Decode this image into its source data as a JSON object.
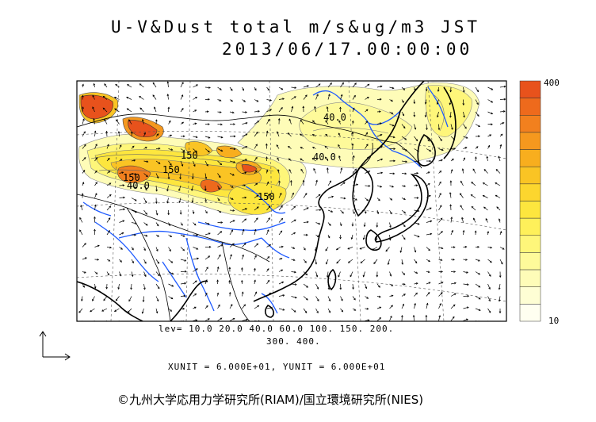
{
  "header": {
    "title": "U-V&Dust total m/s&ug/m3 JST",
    "datetime": "2013/06/17.00:00:00"
  },
  "colorbar": {
    "max_label": "400",
    "min_label": "10",
    "colors": [
      "#e8521c",
      "#ee6a1c",
      "#f2801e",
      "#f5981e",
      "#f8ae1e",
      "#fac424",
      "#fcd62e",
      "#fde63e",
      "#fef05a",
      "#fef67a",
      "#fefa9a",
      "#fefcb8",
      "#fefed4",
      "#fffff0"
    ]
  },
  "contour_labels": [
    "40.0",
    "40.0",
    "150",
    "150",
    "150",
    "40.0",
    "150"
  ],
  "colors": {
    "coast": "#000000",
    "river": "#1e5aff",
    "grid": "#444444",
    "vector": "#000000"
  },
  "footer": {
    "levels_line1": "lev= 10.0 20.0 40.0 60.0 100. 150. 200.",
    "levels_line2": "300. 400.",
    "units": "XUNIT = 6.000E+01, YUNIT = 6.000E+01",
    "credit": "©九州大学応用力学研究所(RIAM)/国立環境研究所(NIES)"
  }
}
